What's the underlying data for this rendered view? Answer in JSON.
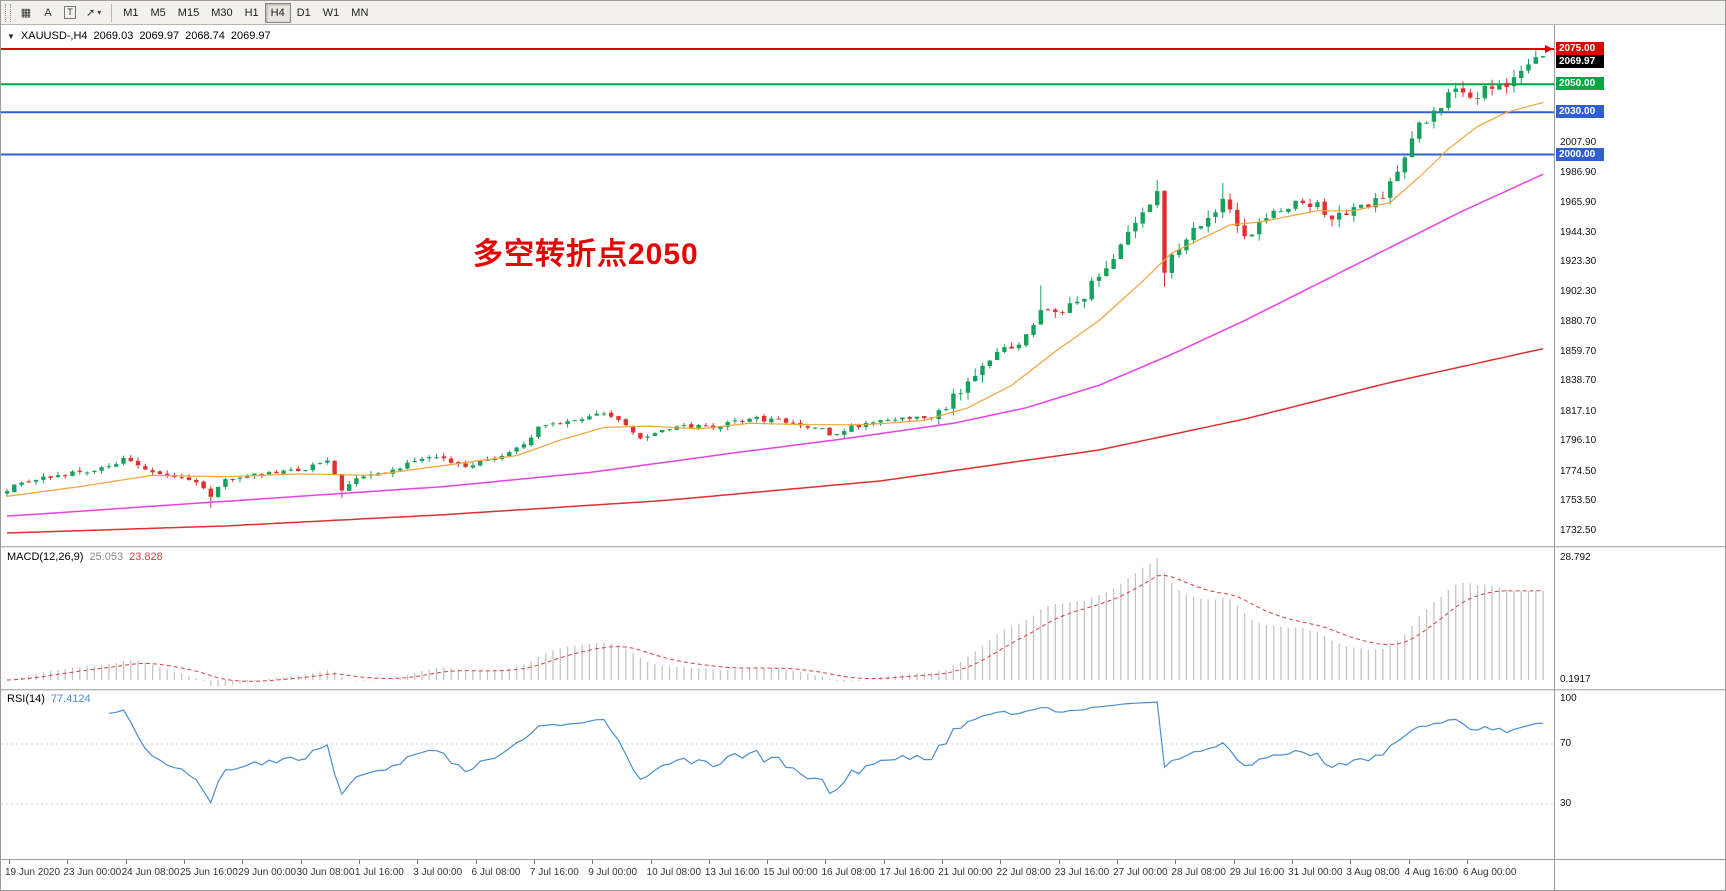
{
  "toolbar": {
    "tools": [
      {
        "name": "chart-window",
        "glyph": "▦"
      },
      {
        "name": "text-label-tool",
        "glyph": "A"
      },
      {
        "name": "text-frame-tool",
        "glyph": "T",
        "boxed": true
      },
      {
        "name": "cursor-tool",
        "glyph": "➚",
        "dropdown": "▾"
      }
    ],
    "timeframes": [
      "M1",
      "M5",
      "M15",
      "M30",
      "H1",
      "H4",
      "D1",
      "W1",
      "MN"
    ],
    "active_timeframe": "H4"
  },
  "chart": {
    "title": {
      "collapse_glyph": "▼",
      "symbol_period": "XAUUSD-,H4",
      "open": "2069.03",
      "high": "2069.97",
      "low": "2068.74",
      "close": "2069.97"
    },
    "annotation": {
      "text": "多空转折点2050",
      "color": "#e60000"
    },
    "price_axis": {
      "labels": [
        "2007.90",
        "1986.90",
        "1965.90",
        "1944.30",
        "1923.30",
        "1902.30",
        "1880.70",
        "1859.70",
        "1838.70",
        "1817.10",
        "1796.10",
        "1774.50",
        "1753.50",
        "1732.50"
      ],
      "tags": [
        {
          "name": "resistance-tag-2075",
          "value": "2075.00",
          "price": 2075.0,
          "color": "#e00000"
        },
        {
          "name": "current-price-tag",
          "value": "2069.97",
          "price": 2069.97,
          "color": "#000000"
        },
        {
          "name": "level-tag-2050",
          "value": "2050.00",
          "price": 2050.0,
          "color": "#00a843"
        },
        {
          "name": "level-tag-2030",
          "value": "2030.00",
          "price": 2030.0,
          "color": "#3060d0"
        },
        {
          "name": "level-tag-2000",
          "value": "2000.00",
          "price": 2000.0,
          "color": "#3060d0"
        }
      ]
    },
    "time_axis": [
      "19 Jun 2020",
      "23 Jun 00:00",
      "24 Jun 08:00",
      "25 Jun 16:00",
      "29 Jun 00:00",
      "30 Jun 08:00",
      "1 Jul 16:00",
      "3 Jul 00:00",
      "6 Jul 08:00",
      "7 Jul 16:00",
      "9 Jul 00:00",
      "10 Jul 08:00",
      "13 Jul 16:00",
      "15 Jul 00:00",
      "16 Jul 08:00",
      "17 Jul 16:00",
      "21 Jul 00:00",
      "22 Jul 08:00",
      "23 Jul 16:00",
      "27 Jul 00:00",
      "28 Jul 08:00",
      "29 Jul 16:00",
      "31 Jul 00:00",
      "3 Aug 08:00",
      "4 Aug 16:00",
      "6 Aug 00:00"
    ]
  },
  "indicators": {
    "macd": {
      "label": "MACD(12,26,9)",
      "main_value": "25.053",
      "signal_value": "23.828",
      "axis_top": "28.792",
      "axis_zero": "0.1917"
    },
    "rsi": {
      "label": "RSI(14)",
      "value": "77.4124",
      "axis": [
        "100",
        "70",
        "30"
      ]
    }
  },
  "chart_data": {
    "type": "candlestick",
    "symbol": "XAUUSD",
    "timeframe": "H4",
    "bars": 212,
    "ylim": [
      1732.5,
      2075.0
    ],
    "last_ohlc": {
      "open": 2069.03,
      "high": 2069.97,
      "low": 2068.74,
      "close": 2069.97
    },
    "price_anchors": [
      [
        0,
        1762
      ],
      [
        3,
        1768
      ],
      [
        6,
        1771
      ],
      [
        10,
        1774
      ],
      [
        14,
        1779
      ],
      [
        16,
        1783
      ],
      [
        19,
        1776
      ],
      [
        23,
        1771
      ],
      [
        27,
        1764
      ],
      [
        28,
        1758
      ],
      [
        30,
        1768
      ],
      [
        33,
        1772
      ],
      [
        37,
        1774
      ],
      [
        41,
        1777
      ],
      [
        44,
        1782
      ],
      [
        46,
        1762
      ],
      [
        48,
        1770
      ],
      [
        52,
        1774
      ],
      [
        56,
        1782
      ],
      [
        58,
        1786
      ],
      [
        61,
        1782
      ],
      [
        63,
        1779
      ],
      [
        66,
        1783
      ],
      [
        69,
        1788
      ],
      [
        71,
        1794
      ],
      [
        73,
        1806
      ],
      [
        76,
        1810
      ],
      [
        79,
        1812
      ],
      [
        82,
        1817
      ],
      [
        84,
        1810
      ],
      [
        87,
        1799
      ],
      [
        90,
        1804
      ],
      [
        93,
        1807
      ],
      [
        97,
        1806
      ],
      [
        100,
        1810
      ],
      [
        103,
        1812
      ],
      [
        106,
        1811
      ],
      [
        109,
        1807
      ],
      [
        112,
        1804
      ],
      [
        113,
        1801
      ],
      [
        116,
        1806
      ],
      [
        119,
        1810
      ],
      [
        123,
        1812
      ],
      [
        127,
        1814
      ],
      [
        129,
        1817
      ],
      [
        130,
        1828
      ],
      [
        132,
        1838
      ],
      [
        134,
        1850
      ],
      [
        136,
        1858
      ],
      [
        139,
        1868
      ],
      [
        141,
        1880
      ],
      [
        142,
        1890
      ],
      [
        144,
        1888
      ],
      [
        146,
        1893
      ],
      [
        148,
        1900
      ],
      [
        150,
        1915
      ],
      [
        152,
        1928
      ],
      [
        154,
        1945
      ],
      [
        156,
        1958
      ],
      [
        158,
        1974
      ],
      [
        159,
        1916
      ],
      [
        160,
        1928
      ],
      [
        161,
        1935
      ],
      [
        163,
        1946
      ],
      [
        165,
        1955
      ],
      [
        167,
        1966
      ],
      [
        169,
        1952
      ],
      [
        170,
        1942
      ],
      [
        172,
        1950
      ],
      [
        174,
        1958
      ],
      [
        176,
        1963
      ],
      [
        178,
        1968
      ],
      [
        180,
        1963
      ],
      [
        182,
        1957
      ],
      [
        184,
        1960
      ],
      [
        187,
        1964
      ],
      [
        189,
        1970
      ],
      [
        190,
        1978
      ],
      [
        191,
        1990
      ],
      [
        192,
        2000
      ],
      [
        193,
        2012
      ],
      [
        194,
        2020
      ],
      [
        196,
        2028
      ],
      [
        197,
        2035
      ],
      [
        198,
        2042
      ],
      [
        199,
        2047
      ],
      [
        200,
        2043
      ],
      [
        202,
        2040
      ],
      [
        203,
        2046
      ],
      [
        205,
        2052
      ],
      [
        206,
        2048
      ],
      [
        208,
        2058
      ],
      [
        209,
        2064
      ],
      [
        211,
        2069.97
      ]
    ],
    "forced_lows": {
      "28": 1749,
      "46": 1756,
      "159": 1906
    },
    "forced_highs": {
      "142": 1907,
      "158": 1982,
      "167": 1980,
      "210": 2072
    },
    "ma_orange": [
      [
        0,
        1757
      ],
      [
        10,
        1764
      ],
      [
        20,
        1772
      ],
      [
        30,
        1771
      ],
      [
        40,
        1773
      ],
      [
        50,
        1772
      ],
      [
        60,
        1779
      ],
      [
        70,
        1786
      ],
      [
        76,
        1797
      ],
      [
        82,
        1806
      ],
      [
        88,
        1807
      ],
      [
        95,
        1805
      ],
      [
        102,
        1809
      ],
      [
        110,
        1808
      ],
      [
        118,
        1808
      ],
      [
        126,
        1811
      ],
      [
        132,
        1820
      ],
      [
        138,
        1836
      ],
      [
        144,
        1860
      ],
      [
        150,
        1882
      ],
      [
        156,
        1910
      ],
      [
        160,
        1930
      ],
      [
        164,
        1940
      ],
      [
        168,
        1950
      ],
      [
        172,
        1952
      ],
      [
        176,
        1956
      ],
      [
        180,
        1960
      ],
      [
        185,
        1960
      ],
      [
        190,
        1966
      ],
      [
        194,
        1984
      ],
      [
        198,
        2004
      ],
      [
        202,
        2020
      ],
      [
        206,
        2030
      ],
      [
        211,
        2037
      ]
    ],
    "ma_magenta": [
      [
        0,
        1743
      ],
      [
        20,
        1750
      ],
      [
        40,
        1757
      ],
      [
        60,
        1764
      ],
      [
        80,
        1774
      ],
      [
        100,
        1788
      ],
      [
        115,
        1798
      ],
      [
        130,
        1809
      ],
      [
        140,
        1820
      ],
      [
        150,
        1836
      ],
      [
        160,
        1858
      ],
      [
        170,
        1882
      ],
      [
        180,
        1908
      ],
      [
        190,
        1934
      ],
      [
        200,
        1960
      ],
      [
        211,
        1986
      ]
    ],
    "ma_red": [
      [
        0,
        1731
      ],
      [
        30,
        1736
      ],
      [
        60,
        1744
      ],
      [
        90,
        1754
      ],
      [
        120,
        1768
      ],
      [
        150,
        1790
      ],
      [
        170,
        1812
      ],
      [
        190,
        1838
      ],
      [
        211,
        1862
      ]
    ],
    "hlines": [
      {
        "price": 2075.0,
        "color": "#e00000",
        "width": 2
      },
      {
        "price": 2050.0,
        "color": "#00a843",
        "width": 2
      },
      {
        "price": 2030.0,
        "color": "#3060d0",
        "width": 2
      },
      {
        "price": 2000.0,
        "color": "#3060d0",
        "width": 2
      }
    ],
    "colors": {
      "up": "#17a15c",
      "down": "#e03131",
      "ma_orange": "#f2a33c",
      "ma_magenta": "#e643e6",
      "ma_red": "#e03030",
      "macd_hist": "#c4c4c4",
      "macd_signal": "#d94040",
      "rsi": "#4a8ed0"
    }
  }
}
